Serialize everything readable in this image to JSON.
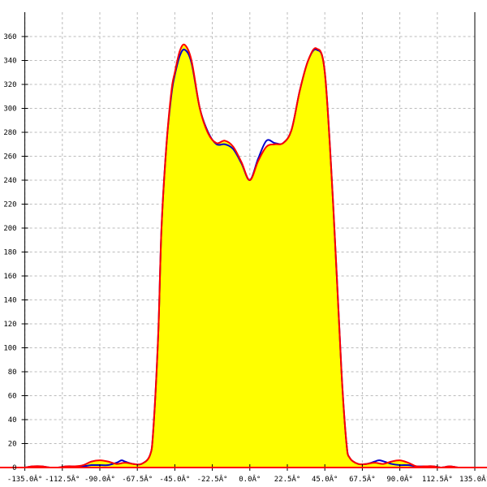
{
  "chart_data": {
    "type": "area",
    "title": "",
    "xlabel": "",
    "ylabel": "",
    "xlim": [
      -135,
      135
    ],
    "ylim": [
      0,
      360
    ],
    "grid": true,
    "x_ticks": [
      -135,
      -112.5,
      -90,
      -67.5,
      -45,
      -22.5,
      0,
      22.5,
      45,
      67.5,
      90,
      112.5,
      135
    ],
    "x_tick_labels": [
      "-135.0Â°",
      "-112.5Â°",
      "-90.0Â°",
      "-67.5Â°",
      "-45.0Â°",
      "-22.5Â°",
      "0.0Â°",
      "22.5Â°",
      "45.0Â°",
      "67.5Â°",
      "90.0Â°",
      "112.5Â°",
      "135.0Â°"
    ],
    "y_ticks": [
      0,
      20,
      40,
      60,
      80,
      100,
      120,
      140,
      160,
      180,
      200,
      220,
      240,
      260,
      280,
      300,
      320,
      340,
      360
    ],
    "y_tick_labels": [
      "0",
      "20",
      "40",
      "60",
      "80",
      "100",
      "120",
      "140",
      "160",
      "180",
      "200",
      "220",
      "240",
      "260",
      "280",
      "300",
      "320",
      "340",
      "360"
    ],
    "fill_color": "#ffff00",
    "series": [
      {
        "color": "#0000cc",
        "x": [
          -135,
          -130,
          -125,
          -120,
          -115,
          -110,
          -105,
          -100,
          -95,
          -90,
          -85,
          -80,
          -77,
          -75,
          -70,
          -65,
          -60,
          -58,
          -55,
          -53,
          -50,
          -47,
          -45,
          -42,
          -39,
          -35,
          -30,
          -25,
          -20,
          -15,
          -10,
          -5,
          0,
          5,
          10,
          15,
          20,
          25,
          30,
          35,
          40,
          45,
          50,
          55,
          58,
          60,
          65,
          70,
          75,
          78,
          85,
          90,
          95,
          100,
          105,
          110,
          115,
          120,
          125,
          130,
          135
        ],
        "y": [
          0,
          1,
          1,
          0,
          0,
          1,
          1,
          1,
          2,
          2,
          2,
          4,
          6,
          5,
          3,
          3,
          10,
          30,
          110,
          200,
          270,
          312,
          328,
          344,
          349,
          338,
          300,
          280,
          270,
          270,
          266,
          254,
          240,
          258,
          273,
          271,
          271,
          282,
          315,
          340,
          349,
          330,
          220,
          80,
          20,
          8,
          3,
          3,
          5,
          6,
          3,
          2,
          2,
          1,
          1,
          1,
          0,
          1,
          0,
          0,
          0
        ]
      },
      {
        "color": "#ff0000",
        "x": [
          -135,
          -130,
          -125,
          -120,
          -115,
          -110,
          -105,
          -100,
          -95,
          -90,
          -85,
          -80,
          -75,
          -70,
          -65,
          -60,
          -58,
          -55,
          -53,
          -50,
          -47,
          -45,
          -42,
          -39,
          -35,
          -30,
          -25,
          -20,
          -15,
          -10,
          -5,
          0,
          5,
          10,
          15,
          20,
          25,
          30,
          35,
          40,
          45,
          50,
          55,
          58,
          60,
          65,
          70,
          75,
          80,
          85,
          90,
          95,
          100,
          105,
          110,
          115,
          120,
          125,
          130,
          135
        ],
        "y": [
          0,
          1,
          1,
          0,
          0,
          1,
          1,
          2,
          5,
          6,
          5,
          3,
          4,
          3,
          3,
          10,
          30,
          110,
          200,
          270,
          315,
          330,
          348,
          353,
          340,
          300,
          279,
          271,
          273,
          268,
          255,
          240,
          256,
          268,
          270,
          271,
          282,
          315,
          340,
          350,
          330,
          220,
          80,
          20,
          8,
          3,
          3,
          4,
          3,
          5,
          6,
          4,
          1,
          1,
          1,
          0,
          1,
          0,
          0,
          0
        ]
      }
    ]
  }
}
